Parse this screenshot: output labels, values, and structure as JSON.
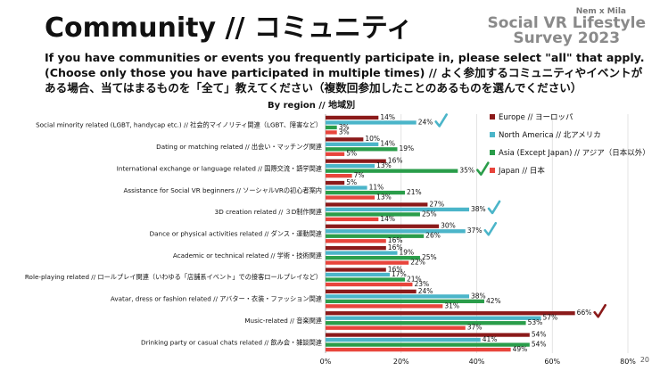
{
  "header": {
    "title": "Community // コミュニティ",
    "brand_small": "Nem x Mila",
    "brand_line1": "Social VR Lifestyle",
    "brand_line2": "Survey 2023",
    "question": "If you have communities or events you frequently participate in, please select \"all\" that apply. (Choose only those you have participated in multiple times) // よく参加するコミュニティやイベントがある場合、当てはまるものを「全て」教えてください（複数回参加したことのあるものを選んでください）",
    "page_number": "20"
  },
  "chart_data": {
    "type": "bar",
    "orientation": "horizontal",
    "subtitle": "By region // 地域別",
    "categories": [
      "Social minority related (LGBT, handycap etc.) // 社会的マイノリティ関連（LGBT、障害など）",
      "Dating or matching related // 出会い・マッチング関連",
      "International exchange or language related // 国際交流・語学関連",
      "Assistance for Social VR beginners // ソーシャルVRの初心者案内",
      "3D creation related // ３D制作関連",
      "Dance or physical activities related // ダンス・運動関連",
      "Academic or technical related // 学術・技術関連",
      "Role-playing related // ロールプレイ関連（いわゆる「店舗系イベント」での接客ロールプレイなど）",
      "Avatar, dress or fashion related // アバター・衣装・ファッション関連",
      "Music-related // 音楽関連",
      "Drinking party or casual chats related // 飲み会・雑談関連"
    ],
    "series": [
      {
        "name": "Europe // ヨーロッパ",
        "color": "#8b1a1a",
        "values": [
          14,
          10,
          16,
          5,
          27,
          30,
          16,
          16,
          24,
          66,
          54
        ]
      },
      {
        "name": "North America // 北アメリカ",
        "color": "#4bb5c9",
        "values": [
          24,
          14,
          13,
          11,
          38,
          37,
          19,
          17,
          38,
          57,
          41
        ]
      },
      {
        "name": "Asia (Except Japan) // アジア（日本以外）",
        "color": "#2a9d4a",
        "values": [
          3,
          19,
          35,
          21,
          25,
          26,
          25,
          21,
          42,
          53,
          54
        ]
      },
      {
        "name": "Japan // 日本",
        "color": "#e8453c",
        "values": [
          3,
          5,
          7,
          13,
          14,
          16,
          22,
          23,
          31,
          37,
          49
        ]
      }
    ],
    "value_labels": [
      [
        "14%",
        "10%",
        "16%",
        "5%",
        "27%",
        "30%",
        "16%",
        "16%",
        "24%",
        "66%",
        "54%"
      ],
      [
        "24%",
        "14%",
        "13%",
        "11%",
        "38%",
        "37%",
        "19%",
        "17%",
        "38%",
        "57%",
        "41%"
      ],
      [
        "3%",
        "19%",
        "35%",
        "21%",
        "25%",
        "26%",
        "25%",
        "21%",
        "42%",
        "53%",
        "54%"
      ],
      [
        "3%",
        "5%",
        "7%",
        "13%",
        "14%",
        "16%",
        "22%",
        "23%",
        "31%",
        "37%",
        "49%"
      ]
    ],
    "xlim": [
      0,
      80
    ],
    "xticks": [
      0,
      20,
      40,
      60,
      80
    ],
    "xtick_labels": [
      "0%",
      "20%",
      "40%",
      "60%",
      "80%"
    ],
    "gridlines": true,
    "legend_position": "right",
    "checkmarks": [
      {
        "category": 0,
        "series": 1,
        "color": "#4bb5c9"
      },
      {
        "category": 2,
        "series": 2,
        "color": "#2a9d4a"
      },
      {
        "category": 4,
        "series": 1,
        "color": "#4bb5c9"
      },
      {
        "category": 5,
        "series": 1,
        "color": "#4bb5c9"
      },
      {
        "category": 9,
        "series": 0,
        "color": "#8b1a1a"
      }
    ]
  }
}
